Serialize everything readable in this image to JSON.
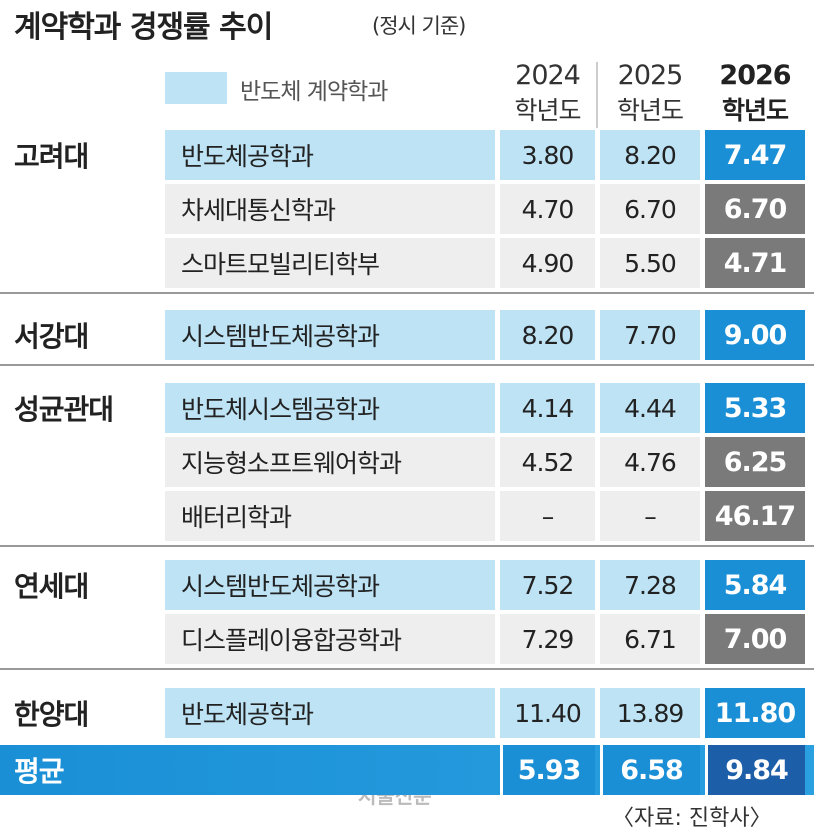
{
  "header": {
    "title": "계약학과 경쟁률 추이",
    "subtitle": "(정시 기준)"
  },
  "legend": "반도체 계약학과",
  "columns": [
    {
      "year": "2024",
      "label": "학년도"
    },
    {
      "year": "2025",
      "label": "학년도"
    },
    {
      "year": "2026",
      "label": "학년도"
    }
  ],
  "groups": [
    {
      "university": "고려대",
      "rows": [
        {
          "department": "반도체공학과",
          "highlight": true,
          "values": [
            "3.80",
            "8.20",
            "7.47"
          ]
        },
        {
          "department": "차세대통신학과",
          "highlight": false,
          "values": [
            "4.70",
            "6.70",
            "6.70"
          ]
        },
        {
          "department": "스마트모빌리티학부",
          "highlight": false,
          "values": [
            "4.90",
            "5.50",
            "4.71"
          ]
        }
      ]
    },
    {
      "university": "서강대",
      "rows": [
        {
          "department": "시스템반도체공학과",
          "highlight": true,
          "values": [
            "8.20",
            "7.70",
            "9.00"
          ]
        }
      ]
    },
    {
      "university": "성균관대",
      "rows": [
        {
          "department": "반도체시스템공학과",
          "highlight": true,
          "values": [
            "4.14",
            "4.44",
            "5.33"
          ]
        },
        {
          "department": "지능형소프트웨어학과",
          "highlight": false,
          "values": [
            "4.52",
            "4.76",
            "6.25"
          ]
        },
        {
          "department": "배터리학과",
          "highlight": false,
          "values": [
            "–",
            "–",
            "46.17"
          ]
        }
      ]
    },
    {
      "university": "연세대",
      "rows": [
        {
          "department": "시스템반도체공학과",
          "highlight": true,
          "values": [
            "7.52",
            "7.28",
            "5.84"
          ]
        },
        {
          "department": "디스플레이융합공학과",
          "highlight": false,
          "values": [
            "7.29",
            "6.71",
            "7.00"
          ]
        }
      ]
    },
    {
      "university": "한양대",
      "rows": [
        {
          "department": "반도체공학과",
          "highlight": true,
          "values": [
            "11.40",
            "13.89",
            "11.80"
          ]
        }
      ]
    }
  ],
  "average": {
    "label": "평균",
    "values": [
      "5.93",
      "6.58",
      "9.84"
    ]
  },
  "watermark": "서울신문",
  "source": "〈자료: 진학사〉"
}
